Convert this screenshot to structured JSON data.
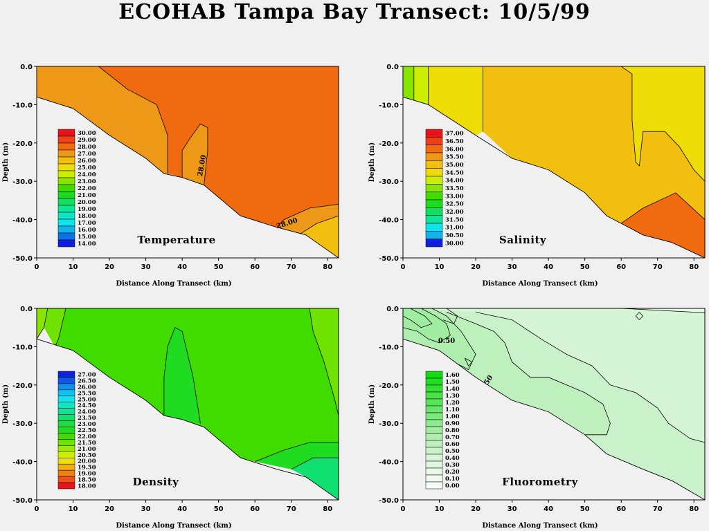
{
  "title": "ECOHAB Tampa Bay Transect: 10/5/99",
  "chart_data": [
    {
      "type": "contour",
      "title": "Temperature",
      "xlabel": "Distance Along Transect (km)",
      "ylabel": "Depth (m)",
      "xlim": [
        0,
        83
      ],
      "ylim": [
        -50,
        0
      ],
      "xticks": [
        "0",
        "10",
        "20",
        "30",
        "40",
        "50",
        "60",
        "70",
        "80"
      ],
      "yticks": [
        "0.0",
        "-10.0",
        "-20.0",
        "-30.0",
        "-40.0",
        "-50.0"
      ],
      "legend_levels": [
        "30.00",
        "29.00",
        "28.00",
        "27.00",
        "26.00",
        "25.00",
        "24.00",
        "23.00",
        "22.00",
        "21.00",
        "20.00",
        "19.00",
        "18.00",
        "17.00",
        "16.00",
        "15.00",
        "14.00"
      ],
      "legend_colors": [
        "#e8141c",
        "#f04018",
        "#f06a10",
        "#ee9818",
        "#f2be10",
        "#eedd06",
        "#ccee00",
        "#88e400",
        "#40dc00",
        "#1cdc20",
        "#10e060",
        "#10e498",
        "#10e4c8",
        "#10e2ee",
        "#10b4ee",
        "#1070e8",
        "#1020e0"
      ],
      "contour_labels": [
        {
          "text": "28.00",
          "x": 46,
          "y": -26,
          "angle": -80
        },
        {
          "text": "28.00",
          "x": 69,
          "y": -41.5,
          "angle": -18
        }
      ],
      "bottom": [
        [
          0,
          -8
        ],
        [
          10,
          -11
        ],
        [
          20,
          -18
        ],
        [
          30,
          -24
        ],
        [
          35,
          -28
        ],
        [
          40,
          -29
        ],
        [
          46,
          -31
        ],
        [
          56,
          -39
        ],
        [
          66,
          -42
        ],
        [
          74,
          -44
        ],
        [
          83,
          -50
        ]
      ]
    },
    {
      "type": "contour",
      "title": "Salinity",
      "xlabel": "Distance Along Transect (km)",
      "ylabel": "Depth (m)",
      "xlim": [
        0,
        83
      ],
      "ylim": [
        -50,
        0
      ],
      "xticks": [
        "0",
        "10",
        "20",
        "30",
        "40",
        "50",
        "60",
        "70",
        "80"
      ],
      "yticks": [
        "0.0",
        "-10.0",
        "-20.0",
        "-30.0",
        "-40.0",
        "-50.0"
      ],
      "legend_levels": [
        "37.00",
        "36.50",
        "36.00",
        "35.50",
        "35.00",
        "34.50",
        "34.00",
        "33.50",
        "33.00",
        "32.50",
        "32.00",
        "31.50",
        "31.00",
        "30.50",
        "30.00"
      ],
      "legend_colors": [
        "#e8141c",
        "#f04018",
        "#f06a10",
        "#ee9818",
        "#f2be10",
        "#eedd06",
        "#ccee00",
        "#88e400",
        "#40dc00",
        "#1cdc20",
        "#10e060",
        "#10e498",
        "#10e2ee",
        "#10b4ee",
        "#1020e0"
      ],
      "contour_labels": [],
      "bottom": [
        [
          0,
          -8
        ],
        [
          7,
          -10
        ],
        [
          20,
          -18
        ],
        [
          30,
          -24
        ],
        [
          40,
          -27
        ],
        [
          50,
          -33
        ],
        [
          56,
          -39
        ],
        [
          60,
          -41
        ],
        [
          66,
          -44
        ],
        [
          74,
          -46
        ],
        [
          83,
          -50
        ]
      ]
    },
    {
      "type": "contour",
      "title": "Density",
      "xlabel": "Distance Along Transect (km)",
      "ylabel": "Depth (m)",
      "xlim": [
        0,
        83
      ],
      "ylim": [
        -50,
        0
      ],
      "xticks": [
        "0",
        "10",
        "20",
        "30",
        "40",
        "50",
        "60",
        "70",
        "80"
      ],
      "yticks": [
        "0.0",
        "-10.0",
        "-20.0",
        "-30.0",
        "-40.0",
        "-50.0"
      ],
      "legend_levels": [
        "27.00",
        "26.50",
        "26.00",
        "25.50",
        "25.00",
        "24.50",
        "24.00",
        "23.50",
        "23.00",
        "22.50",
        "22.00",
        "21.50",
        "21.00",
        "20.50",
        "20.00",
        "19.50",
        "19.00",
        "18.50",
        "18.00"
      ],
      "legend_colors": [
        "#1020e0",
        "#1058e8",
        "#1090ee",
        "#10c0ee",
        "#10e2ee",
        "#10e4c0",
        "#10e498",
        "#10e070",
        "#18de40",
        "#20dc20",
        "#40dc00",
        "#70e200",
        "#a0e800",
        "#d0ee00",
        "#eedd06",
        "#f2b010",
        "#f08010",
        "#f05018",
        "#e8141c"
      ],
      "contour_labels": [],
      "bottom": [
        [
          0,
          -8
        ],
        [
          10,
          -11
        ],
        [
          20,
          -18
        ],
        [
          30,
          -24
        ],
        [
          35,
          -28
        ],
        [
          40,
          -29
        ],
        [
          46,
          -31
        ],
        [
          56,
          -39
        ],
        [
          66,
          -42
        ],
        [
          74,
          -44
        ],
        [
          83,
          -50
        ]
      ]
    },
    {
      "type": "contour",
      "title": "Fluorometry",
      "xlabel": "Distance Along Transect (km)",
      "ylabel": "Depth (m)",
      "xlim": [
        0,
        83
      ],
      "ylim": [
        -50,
        0
      ],
      "xticks": [
        "0",
        "10",
        "20",
        "30",
        "40",
        "50",
        "60",
        "70",
        "80"
      ],
      "yticks": [
        "0.0",
        "-10.0",
        "-20.0",
        "-30.0",
        "-40.0",
        "-50.0"
      ],
      "legend_levels": [
        "1.60",
        "1.50",
        "1.40",
        "1.30",
        "1.20",
        "1.10",
        "1.00",
        "0.90",
        "0.80",
        "0.70",
        "0.60",
        "0.50",
        "0.40",
        "0.30",
        "0.20",
        "0.10",
        "0.00"
      ],
      "legend_colors": [
        "#10dc10",
        "#22de22",
        "#34e034",
        "#46e246",
        "#58e458",
        "#6ae66a",
        "#7ce87c",
        "#8eea8e",
        "#a0eca0",
        "#b0eeb0",
        "#bef0be",
        "#caf2ca",
        "#d6f4d6",
        "#e0f6e0",
        "#e8f8e8",
        "#f0faf0",
        "#f8fcf8"
      ],
      "contour_labels": [
        {
          "text": "0.50",
          "x": 12,
          "y": -9,
          "angle": 0
        },
        {
          "text": "50",
          "x": 24,
          "y": -19,
          "angle": -55
        }
      ],
      "bottom": [
        [
          0,
          -8
        ],
        [
          10,
          -11
        ],
        [
          20,
          -18
        ],
        [
          30,
          -24
        ],
        [
          40,
          -27
        ],
        [
          50,
          -33
        ],
        [
          56,
          -38
        ],
        [
          66,
          -42
        ],
        [
          74,
          -45
        ],
        [
          83,
          -50
        ]
      ]
    }
  ]
}
